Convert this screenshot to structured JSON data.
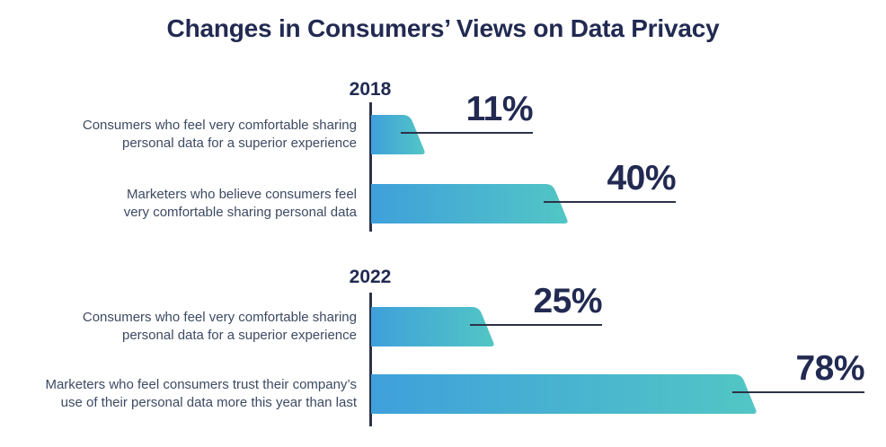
{
  "chart_data": {
    "type": "bar",
    "orientation": "horizontal",
    "title": "Changes in Consumers’ Views on Data Privacy",
    "unit": "%",
    "xlim": [
      0,
      100
    ],
    "grid": false,
    "legend": false,
    "bar_gradient": [
      "#3FA0DB",
      "#52C6C5"
    ],
    "navy_text_color": "#222A52",
    "line_color": "#2C3248",
    "label_text_color": "#3D4A63",
    "groups": [
      {
        "year": "2018",
        "bars": [
          {
            "label": "Consumers who feel very comfortable sharing personal data for a superior experience",
            "label_lines": [
              "Consumers who feel very comfortable sharing",
              "personal data for a superior experience"
            ],
            "value": 11,
            "value_label": "11%"
          },
          {
            "label": "Marketers who believe consumers feel very comfortable sharing personal data",
            "label_lines": [
              "Marketers who believe consumers feel",
              "very comfortable sharing personal data"
            ],
            "value": 40,
            "value_label": "40%"
          }
        ]
      },
      {
        "year": "2022",
        "bars": [
          {
            "label": "Consumers who feel very comfortable sharing personal data for a superior experience",
            "label_lines": [
              "Consumers who feel very comfortable sharing",
              "personal data for a superior experience"
            ],
            "value": 25,
            "value_label": "25%"
          },
          {
            "label": "Marketers who feel consumers trust their company’s use of their personal data more this year than last",
            "label_lines": [
              "Marketers who feel consumers trust their company’s",
              "use of their personal data more this year than last"
            ],
            "value": 78,
            "value_label": "78%"
          }
        ]
      }
    ]
  }
}
